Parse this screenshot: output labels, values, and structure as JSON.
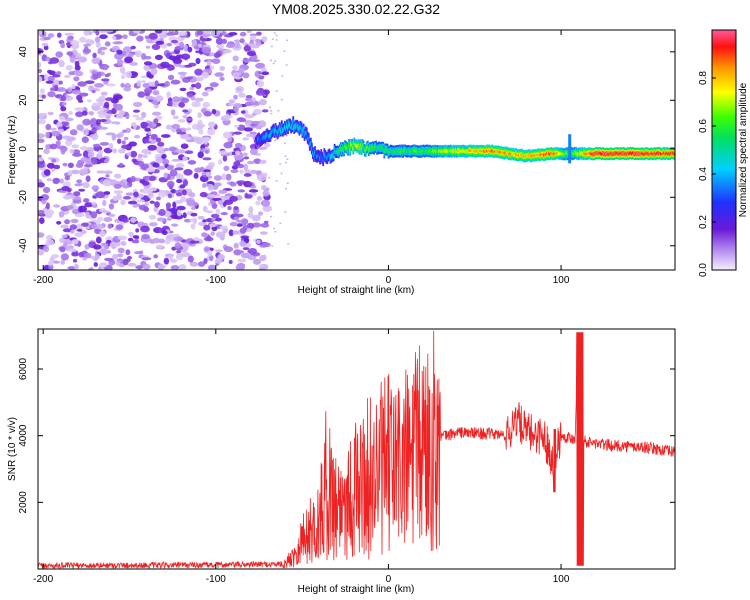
{
  "title": "YM08.2025.330.02.22.G32",
  "chart_data": [
    {
      "type": "heatmap",
      "xlabel": "Height of straight line (km)",
      "ylabel": "Frequency (Hz)",
      "xlim": [
        -203,
        166
      ],
      "ylim": [
        -50,
        49
      ],
      "xticks": [
        -200,
        -100,
        0,
        100
      ],
      "yticks": [
        -40,
        -20,
        0,
        20,
        40
      ],
      "noise_region_x": [
        -203,
        -70
      ],
      "ridge": [
        {
          "x": -77,
          "f": 3,
          "amp": 0.3
        },
        {
          "x": -70,
          "f": 6,
          "amp": 0.4
        },
        {
          "x": -60,
          "f": 9,
          "amp": 0.45
        },
        {
          "x": -54,
          "f": 10,
          "amp": 0.45
        },
        {
          "x": -48,
          "f": 6,
          "amp": 0.4
        },
        {
          "x": -42,
          "f": -4,
          "amp": 0.35
        },
        {
          "x": -35,
          "f": -3,
          "amp": 0.4
        },
        {
          "x": -28,
          "f": 0,
          "amp": 0.55
        },
        {
          "x": -20,
          "f": 1,
          "amp": 0.75
        },
        {
          "x": -12,
          "f": 0,
          "amp": 0.6
        },
        {
          "x": 0,
          "f": -1,
          "amp": 0.55
        },
        {
          "x": 20,
          "f": -1,
          "amp": 0.6
        },
        {
          "x": 40,
          "f": -1,
          "amp": 0.75
        },
        {
          "x": 60,
          "f": -1,
          "amp": 0.85
        },
        {
          "x": 80,
          "f": -3,
          "amp": 0.8
        },
        {
          "x": 95,
          "f": -2,
          "amp": 0.9
        },
        {
          "x": 105,
          "f": -2,
          "amp": 0.6
        },
        {
          "x": 120,
          "f": -2,
          "amp": 0.95
        },
        {
          "x": 140,
          "f": -2,
          "amp": 0.95
        },
        {
          "x": 166,
          "f": -2,
          "amp": 0.9
        }
      ],
      "colorbar": {
        "label": "Normalized spectral amplitude",
        "range": [
          0.0,
          1.0
        ],
        "ticks": [
          "0.0",
          "0.2",
          "0.4",
          "0.6",
          "0.8"
        ]
      }
    },
    {
      "type": "line",
      "xlabel": "Height of straight line (km)",
      "ylabel": "SNR (10 * v/v)",
      "xlim": [
        -203,
        166
      ],
      "ylim": [
        0,
        7200
      ],
      "xticks": [
        -200,
        -100,
        0,
        100
      ],
      "yticks": [
        2000,
        4000,
        6000
      ],
      "color": "#ee2222",
      "series": [
        {
          "name": "SNR",
          "x": [
            -203,
            -100,
            -60,
            -55,
            -50,
            -40,
            -36,
            -30,
            -20,
            -10,
            0,
            10,
            20,
            30,
            40,
            60,
            70,
            73,
            80,
            90,
            95,
            100,
            108,
            110,
            112,
            115,
            130,
            150,
            166
          ],
          "y": [
            100,
            120,
            150,
            400,
            900,
            1400,
            2600,
            1900,
            2300,
            2800,
            3100,
            3200,
            3700,
            3950,
            4100,
            4050,
            4000,
            4600,
            4100,
            4000,
            3300,
            4000,
            3900,
            6800,
            3900,
            3800,
            3700,
            3650,
            3500
          ]
        }
      ]
    }
  ]
}
